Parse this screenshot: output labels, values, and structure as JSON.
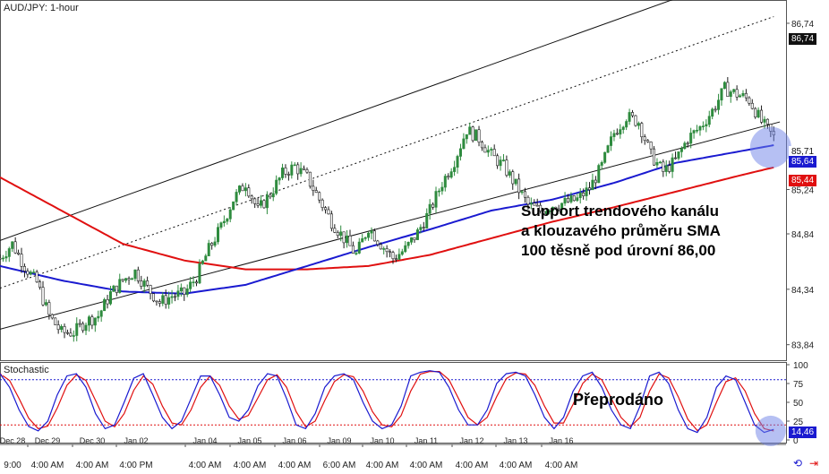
{
  "chart_data": [
    {
      "type": "candlestick",
      "title": "AUD/JPY: 1-hour",
      "y_ticks": [
        "86,74",
        "85,24",
        "84,84",
        "84,34",
        "83,84"
      ],
      "ylim": [
        83.7,
        86.95
      ],
      "x_labels_top": [
        "Dec 28",
        "Dec 29",
        "Dec 30",
        "Jan 02",
        "Jan 04",
        "Jan 05",
        "Jan 06",
        "Jan 09",
        "Jan 10",
        "Jan 11",
        "Jan 12",
        "Jan 13",
        "Jan 16"
      ],
      "x_labels_bottom": [
        "9:00",
        "4:00 AM",
        "4:00 AM",
        "4:00 PM",
        "4:00 AM",
        "4:00 AM",
        "4:00 AM",
        "6:00 AM",
        "4:00 AM",
        "4:00 AM",
        "4:00 AM",
        "4:00 AM",
        "4:00 AM"
      ],
      "price_labels": {
        "current": "85,71",
        "sma_blue": "85,64",
        "sma_red": "85,44",
        "upper": "86,74"
      },
      "price_path": [
        [
          0,
          84.62
        ],
        [
          2,
          84.75
        ],
        [
          4,
          84.55
        ],
        [
          6,
          84.4
        ],
        [
          8,
          84.1
        ],
        [
          10,
          83.95
        ],
        [
          12,
          83.95
        ],
        [
          14,
          84.05
        ],
        [
          16,
          84.1
        ],
        [
          18,
          84.3
        ],
        [
          20,
          84.42
        ],
        [
          22,
          84.5
        ],
        [
          24,
          84.35
        ],
        [
          26,
          84.22
        ],
        [
          28,
          84.28
        ],
        [
          30,
          84.3
        ],
        [
          32,
          84.45
        ],
        [
          34,
          84.7
        ],
        [
          36,
          84.9
        ],
        [
          38,
          85.15
        ],
        [
          40,
          85.3
        ],
        [
          42,
          85.05
        ],
        [
          44,
          85.2
        ],
        [
          46,
          85.38
        ],
        [
          48,
          85.45
        ],
        [
          50,
          85.35
        ],
        [
          52,
          85.15
        ],
        [
          54,
          84.95
        ],
        [
          56,
          84.8
        ],
        [
          58,
          84.65
        ],
        [
          60,
          84.9
        ],
        [
          62,
          84.75
        ],
        [
          64,
          84.62
        ],
        [
          66,
          84.7
        ],
        [
          68,
          84.85
        ],
        [
          70,
          85.05
        ],
        [
          72,
          85.3
        ],
        [
          74,
          85.5
        ],
        [
          76,
          85.78
        ],
        [
          78,
          85.7
        ],
        [
          80,
          85.55
        ],
        [
          82,
          85.45
        ],
        [
          84,
          85.28
        ],
        [
          86,
          85.1
        ],
        [
          88,
          85.05
        ],
        [
          90,
          85.1
        ],
        [
          92,
          85.12
        ],
        [
          94,
          85.15
        ],
        [
          96,
          85.25
        ],
        [
          98,
          85.45
        ],
        [
          100,
          85.75
        ],
        [
          102,
          85.9
        ],
        [
          104,
          85.85
        ],
        [
          106,
          85.55
        ],
        [
          108,
          85.4
        ],
        [
          110,
          85.5
        ],
        [
          112,
          85.7
        ],
        [
          114,
          85.8
        ],
        [
          116,
          85.95
        ],
        [
          118,
          86.15
        ],
        [
          120,
          86.1
        ],
        [
          122,
          86.05
        ],
        [
          124,
          85.85
        ],
        [
          126,
          85.71
        ]
      ],
      "sma_blue": [
        [
          0,
          84.55
        ],
        [
          10,
          84.42
        ],
        [
          20,
          84.32
        ],
        [
          30,
          84.3
        ],
        [
          40,
          84.38
        ],
        [
          50,
          84.55
        ],
        [
          60,
          84.72
        ],
        [
          70,
          84.88
        ],
        [
          80,
          85.05
        ],
        [
          90,
          85.15
        ],
        [
          100,
          85.3
        ],
        [
          110,
          85.48
        ],
        [
          120,
          85.58
        ],
        [
          126,
          85.64
        ]
      ],
      "sma_red": [
        [
          0,
          85.35
        ],
        [
          10,
          85.05
        ],
        [
          20,
          84.75
        ],
        [
          30,
          84.6
        ],
        [
          40,
          84.52
        ],
        [
          50,
          84.52
        ],
        [
          60,
          84.55
        ],
        [
          70,
          84.65
        ],
        [
          80,
          84.8
        ],
        [
          90,
          84.95
        ],
        [
          100,
          85.08
        ],
        [
          110,
          85.22
        ],
        [
          120,
          85.36
        ],
        [
          126,
          85.44
        ]
      ],
      "channel": {
        "lower": [
          [
            0,
            83.98
          ],
          [
            127,
            85.85
          ]
        ],
        "middle": [
          [
            0,
            84.35
          ],
          [
            126,
            86.8
          ]
        ],
        "upper": [
          [
            0,
            84.78
          ],
          [
            127,
            87.3
          ]
        ]
      },
      "annotation": "Support trendového kanálu\na klouzavého průměru SMA\n100 těsně pod úrovní 86,00",
      "colors": {
        "bull": "#2e8b3e",
        "bear": "#1a1a1a",
        "sma_blue": "#1a1ad0",
        "sma_red": "#e01010",
        "highlight": "#6e82e8"
      }
    },
    {
      "type": "line",
      "title": "Stochastic",
      "y_ticks": [
        "100",
        "75",
        "50",
        "25",
        "0"
      ],
      "ylim": [
        0,
        100
      ],
      "levels": [
        80,
        20
      ],
      "price_labels": {
        "k": "14,46"
      },
      "series": [
        {
          "values": [
            88,
            70,
            40,
            18,
            12,
            25,
            60,
            85,
            88,
            70,
            35,
            15,
            20,
            50,
            82,
            88,
            60,
            30,
            15,
            25,
            55,
            85,
            85,
            60,
            30,
            25,
            40,
            72,
            88,
            85,
            55,
            20,
            15,
            35,
            70,
            85,
            88,
            80,
            50,
            25,
            15,
            20,
            45,
            85,
            90,
            92,
            90,
            70,
            40,
            20,
            20,
            40,
            75,
            88,
            90,
            85,
            60,
            30,
            15,
            30,
            65,
            85,
            90,
            70,
            40,
            20,
            15,
            45,
            85,
            90,
            75,
            40,
            15,
            10,
            30,
            70,
            85,
            80,
            50,
            20,
            10,
            14
          ]
        }
      ],
      "annotation": "Přeprodáno"
    }
  ]
}
